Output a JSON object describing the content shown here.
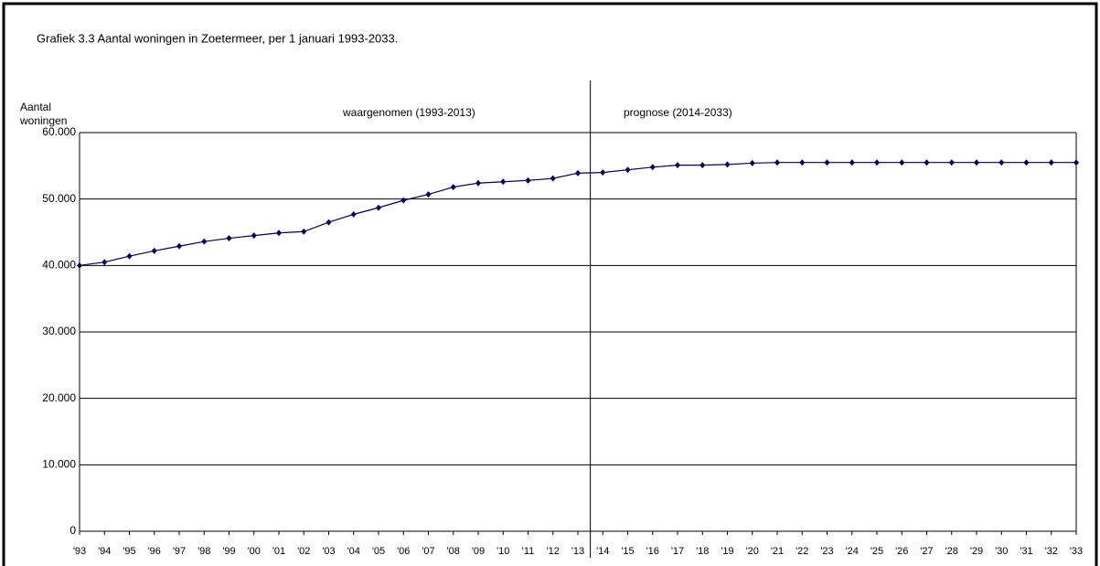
{
  "chart_data": {
    "type": "line",
    "title": "Grafiek 3.3  Aantal woningen in Zoetermeer, per 1 januari 1993-2033.",
    "y_label": [
      "Aantal",
      "woningen"
    ],
    "annotations": [
      "waargenomen (1993-2013)",
      "prognose (2014-2033)"
    ],
    "categories": [
      "'93",
      "'94",
      "'95",
      "'96",
      "'97",
      "'98",
      "'99",
      "'00",
      "'01",
      "'02",
      "'03",
      "'04",
      "'05",
      "'06",
      "'07",
      "'08",
      "'09",
      "'10",
      "'11",
      "'12",
      "'13",
      "'14",
      "'15",
      "'16",
      "'17",
      "'18",
      "'19",
      "'20",
      "'21",
      "'22",
      "'23",
      "'24",
      "'25",
      "'26",
      "'27",
      "'28",
      "'29",
      "'30",
      "'31",
      "'32",
      "'33"
    ],
    "values": [
      40000,
      40500,
      41400,
      42200,
      42900,
      43600,
      44100,
      44500,
      44900,
      45100,
      46500,
      47700,
      48700,
      49800,
      50700,
      51800,
      52400,
      52600,
      52800,
      53100,
      53900,
      54000,
      54400,
      54800,
      55100,
      55100,
      55200,
      55400,
      55500,
      55500,
      55500,
      55500,
      55500,
      55500,
      55500,
      55500,
      55500,
      55500,
      55500,
      55500,
      55500
    ],
    "color": "#000050",
    "ylim": [
      0,
      60000
    ],
    "yticks": [
      0,
      {
        "value": 10000,
        "label": "10.000"
      },
      {
        "value": 20000,
        "label": "20.000"
      },
      {
        "value": 30000,
        "label": "30.000"
      },
      {
        "value": 40000,
        "label": "40.000"
      },
      {
        "value": 50000,
        "label": "50.000"
      },
      {
        "value": 60000,
        "label": "60.000"
      }
    ],
    "grid": true
  }
}
